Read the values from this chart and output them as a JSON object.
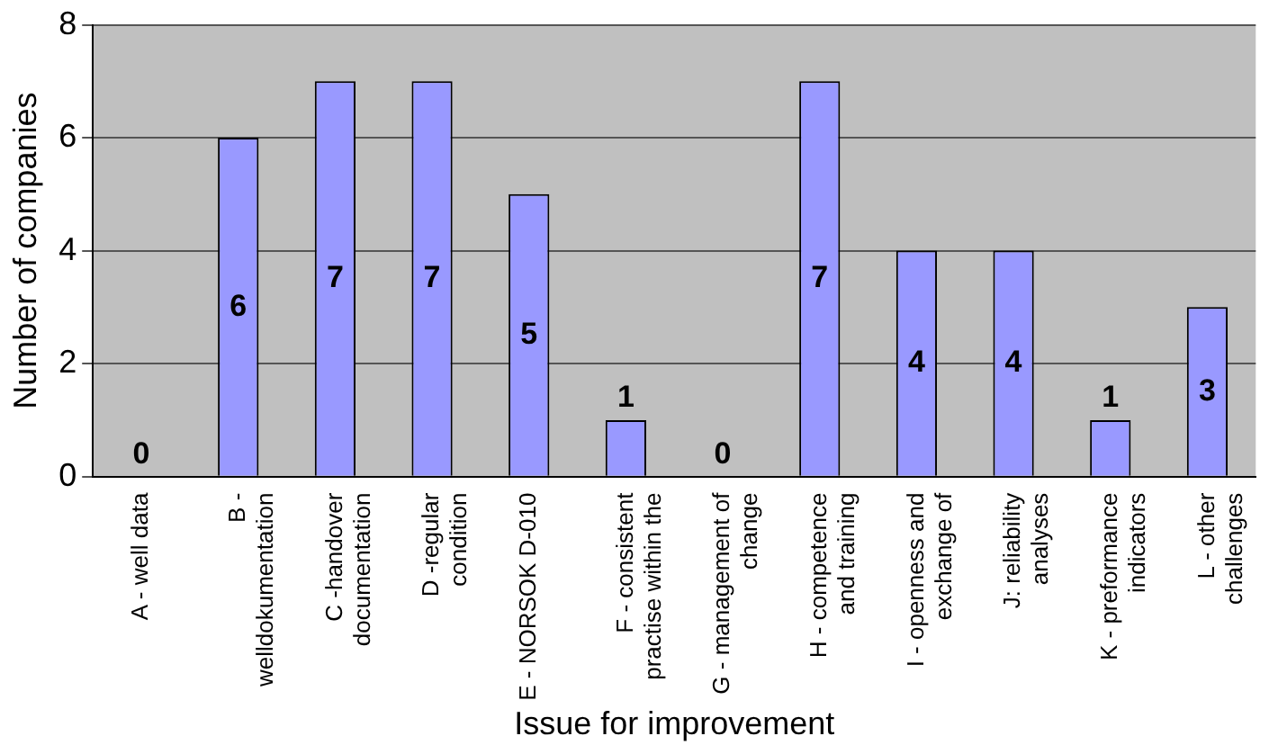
{
  "chart_data": {
    "type": "bar",
    "xlabel": "Issue for improvement",
    "ylabel": "Number of companies",
    "categories": [
      "A - well data",
      "B -\nwelldokumentation",
      "C -handover\ndocumentation",
      "D -regular\ncondition",
      "E - NORSOK D-010",
      "F - consistent\npractise within the",
      "G - management of\nchange",
      "H - competence\nand training",
      "I - openness and\nexchange of",
      "J: reliability\nanalyses",
      "K - preformance\nindicators",
      "L - other\nchallenges"
    ],
    "values": [
      0,
      6,
      7,
      7,
      5,
      1,
      0,
      7,
      4,
      4,
      1,
      3
    ],
    "color": "#9999ff",
    "ylim": [
      0,
      8
    ],
    "yticks": [
      0,
      2,
      4,
      6,
      8
    ],
    "grid": "y",
    "legend": false,
    "data_labels": true
  }
}
